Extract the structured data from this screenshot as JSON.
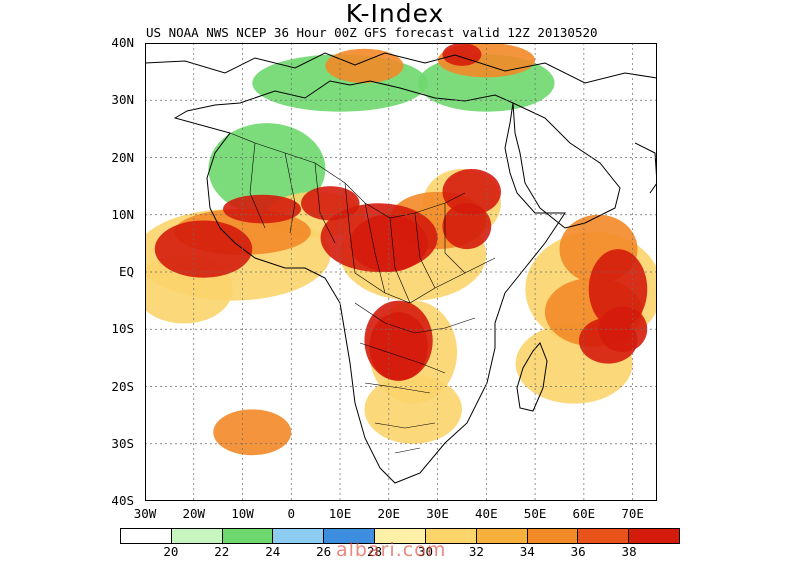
{
  "title": "K-Index",
  "subtitle": "US NOAA NWS NCEP 36 Hour 00Z GFS forecast valid 12Z 20130520",
  "latitude_labels": [
    "40N",
    "30N",
    "20N",
    "10N",
    "EQ",
    "10S",
    "20S",
    "30S",
    "40S"
  ],
  "longitude_labels": [
    "30W",
    "20W",
    "10W",
    "0",
    "10E",
    "20E",
    "30E",
    "40E",
    "50E",
    "60E",
    "70E"
  ],
  "legend": {
    "colors": [
      "#ffffff",
      "#c8f5c0",
      "#6ed86e",
      "#8ecdf2",
      "#3e8ee0",
      "#fff0a8",
      "#fbd46c",
      "#f8b03c",
      "#f38a28",
      "#e8531c",
      "#d51c0c"
    ],
    "labels": [
      "20",
      "22",
      "24",
      "26",
      "28",
      "30",
      "32",
      "34",
      "36",
      "38"
    ]
  },
  "watermark": "albari.com",
  "field_regions": [
    {
      "level": 0,
      "lon": 10,
      "lat": 33,
      "rx": 18,
      "ry": 5
    },
    {
      "level": 0,
      "lon": 40,
      "lat": 33,
      "rx": 14,
      "ry": 5
    },
    {
      "level": 0,
      "lon": -5,
      "lat": 18,
      "rx": 12,
      "ry": 8
    },
    {
      "level": 2,
      "lon": -12,
      "lat": 3,
      "rx": 20,
      "ry": 8
    },
    {
      "level": 2,
      "lon": -22,
      "lat": -3,
      "rx": 10,
      "ry": 6
    },
    {
      "level": 2,
      "lon": 5,
      "lat": 10,
      "rx": 10,
      "ry": 4
    },
    {
      "level": 2,
      "lon": 25,
      "lat": 3,
      "rx": 15,
      "ry": 8
    },
    {
      "level": 2,
      "lon": 35,
      "lat": 12,
      "rx": 8,
      "ry": 6
    },
    {
      "level": 2,
      "lon": 25,
      "lat": -14,
      "rx": 9,
      "ry": 9
    },
    {
      "level": 2,
      "lon": 25,
      "lat": -24,
      "rx": 10,
      "ry": 6
    },
    {
      "level": 2,
      "lon": 62,
      "lat": -3,
      "rx": 14,
      "ry": 10
    },
    {
      "level": 2,
      "lon": 58,
      "lat": -16,
      "rx": 12,
      "ry": 7
    },
    {
      "level": 3,
      "lon": -10,
      "lat": 7,
      "rx": 14,
      "ry": 4
    },
    {
      "level": 3,
      "lon": 30,
      "lat": 9,
      "rx": 10,
      "ry": 5
    },
    {
      "level": 3,
      "lon": 63,
      "lat": 4,
      "rx": 8,
      "ry": 6
    },
    {
      "level": 3,
      "lon": 62,
      "lat": -7,
      "rx": 10,
      "ry": 6
    },
    {
      "level": 3,
      "lon": 15,
      "lat": 36,
      "rx": 8,
      "ry": 3
    },
    {
      "level": 3,
      "lon": 40,
      "lat": 37,
      "rx": 10,
      "ry": 3
    },
    {
      "level": 3,
      "lon": -8,
      "lat": -28,
      "rx": 8,
      "ry": 4
    },
    {
      "level": 4,
      "lon": -18,
      "lat": 4,
      "rx": 10,
      "ry": 5
    },
    {
      "level": 4,
      "lon": 8,
      "lat": 12,
      "rx": 6,
      "ry": 3
    },
    {
      "level": 4,
      "lon": 20,
      "lat": 5,
      "rx": 8,
      "ry": 5
    },
    {
      "level": 4,
      "lon": 37,
      "lat": 14,
      "rx": 6,
      "ry": 4
    },
    {
      "level": 4,
      "lon": 22,
      "lat": -13,
      "rx": 6,
      "ry": 6
    },
    {
      "level": 4,
      "lon": 67,
      "lat": -3,
      "rx": 6,
      "ry": 7
    },
    {
      "level": 4,
      "lon": 65,
      "lat": -12,
      "rx": 6,
      "ry": 4
    },
    {
      "level": 5,
      "lon": -6,
      "lat": 11,
      "rx": 8,
      "ry": 2.5
    },
    {
      "level": 5,
      "lon": 18,
      "lat": 6,
      "rx": 12,
      "ry": 6
    },
    {
      "level": 5,
      "lon": 22,
      "lat": -12,
      "rx": 7,
      "ry": 7
    },
    {
      "level": 5,
      "lon": 68,
      "lat": -10,
      "rx": 5,
      "ry": 4
    },
    {
      "level": 5,
      "lon": 36,
      "lat": 8,
      "rx": 5,
      "ry": 4
    },
    {
      "level": 5,
      "lon": 35,
      "lat": 38,
      "rx": 4,
      "ry": 2
    }
  ]
}
